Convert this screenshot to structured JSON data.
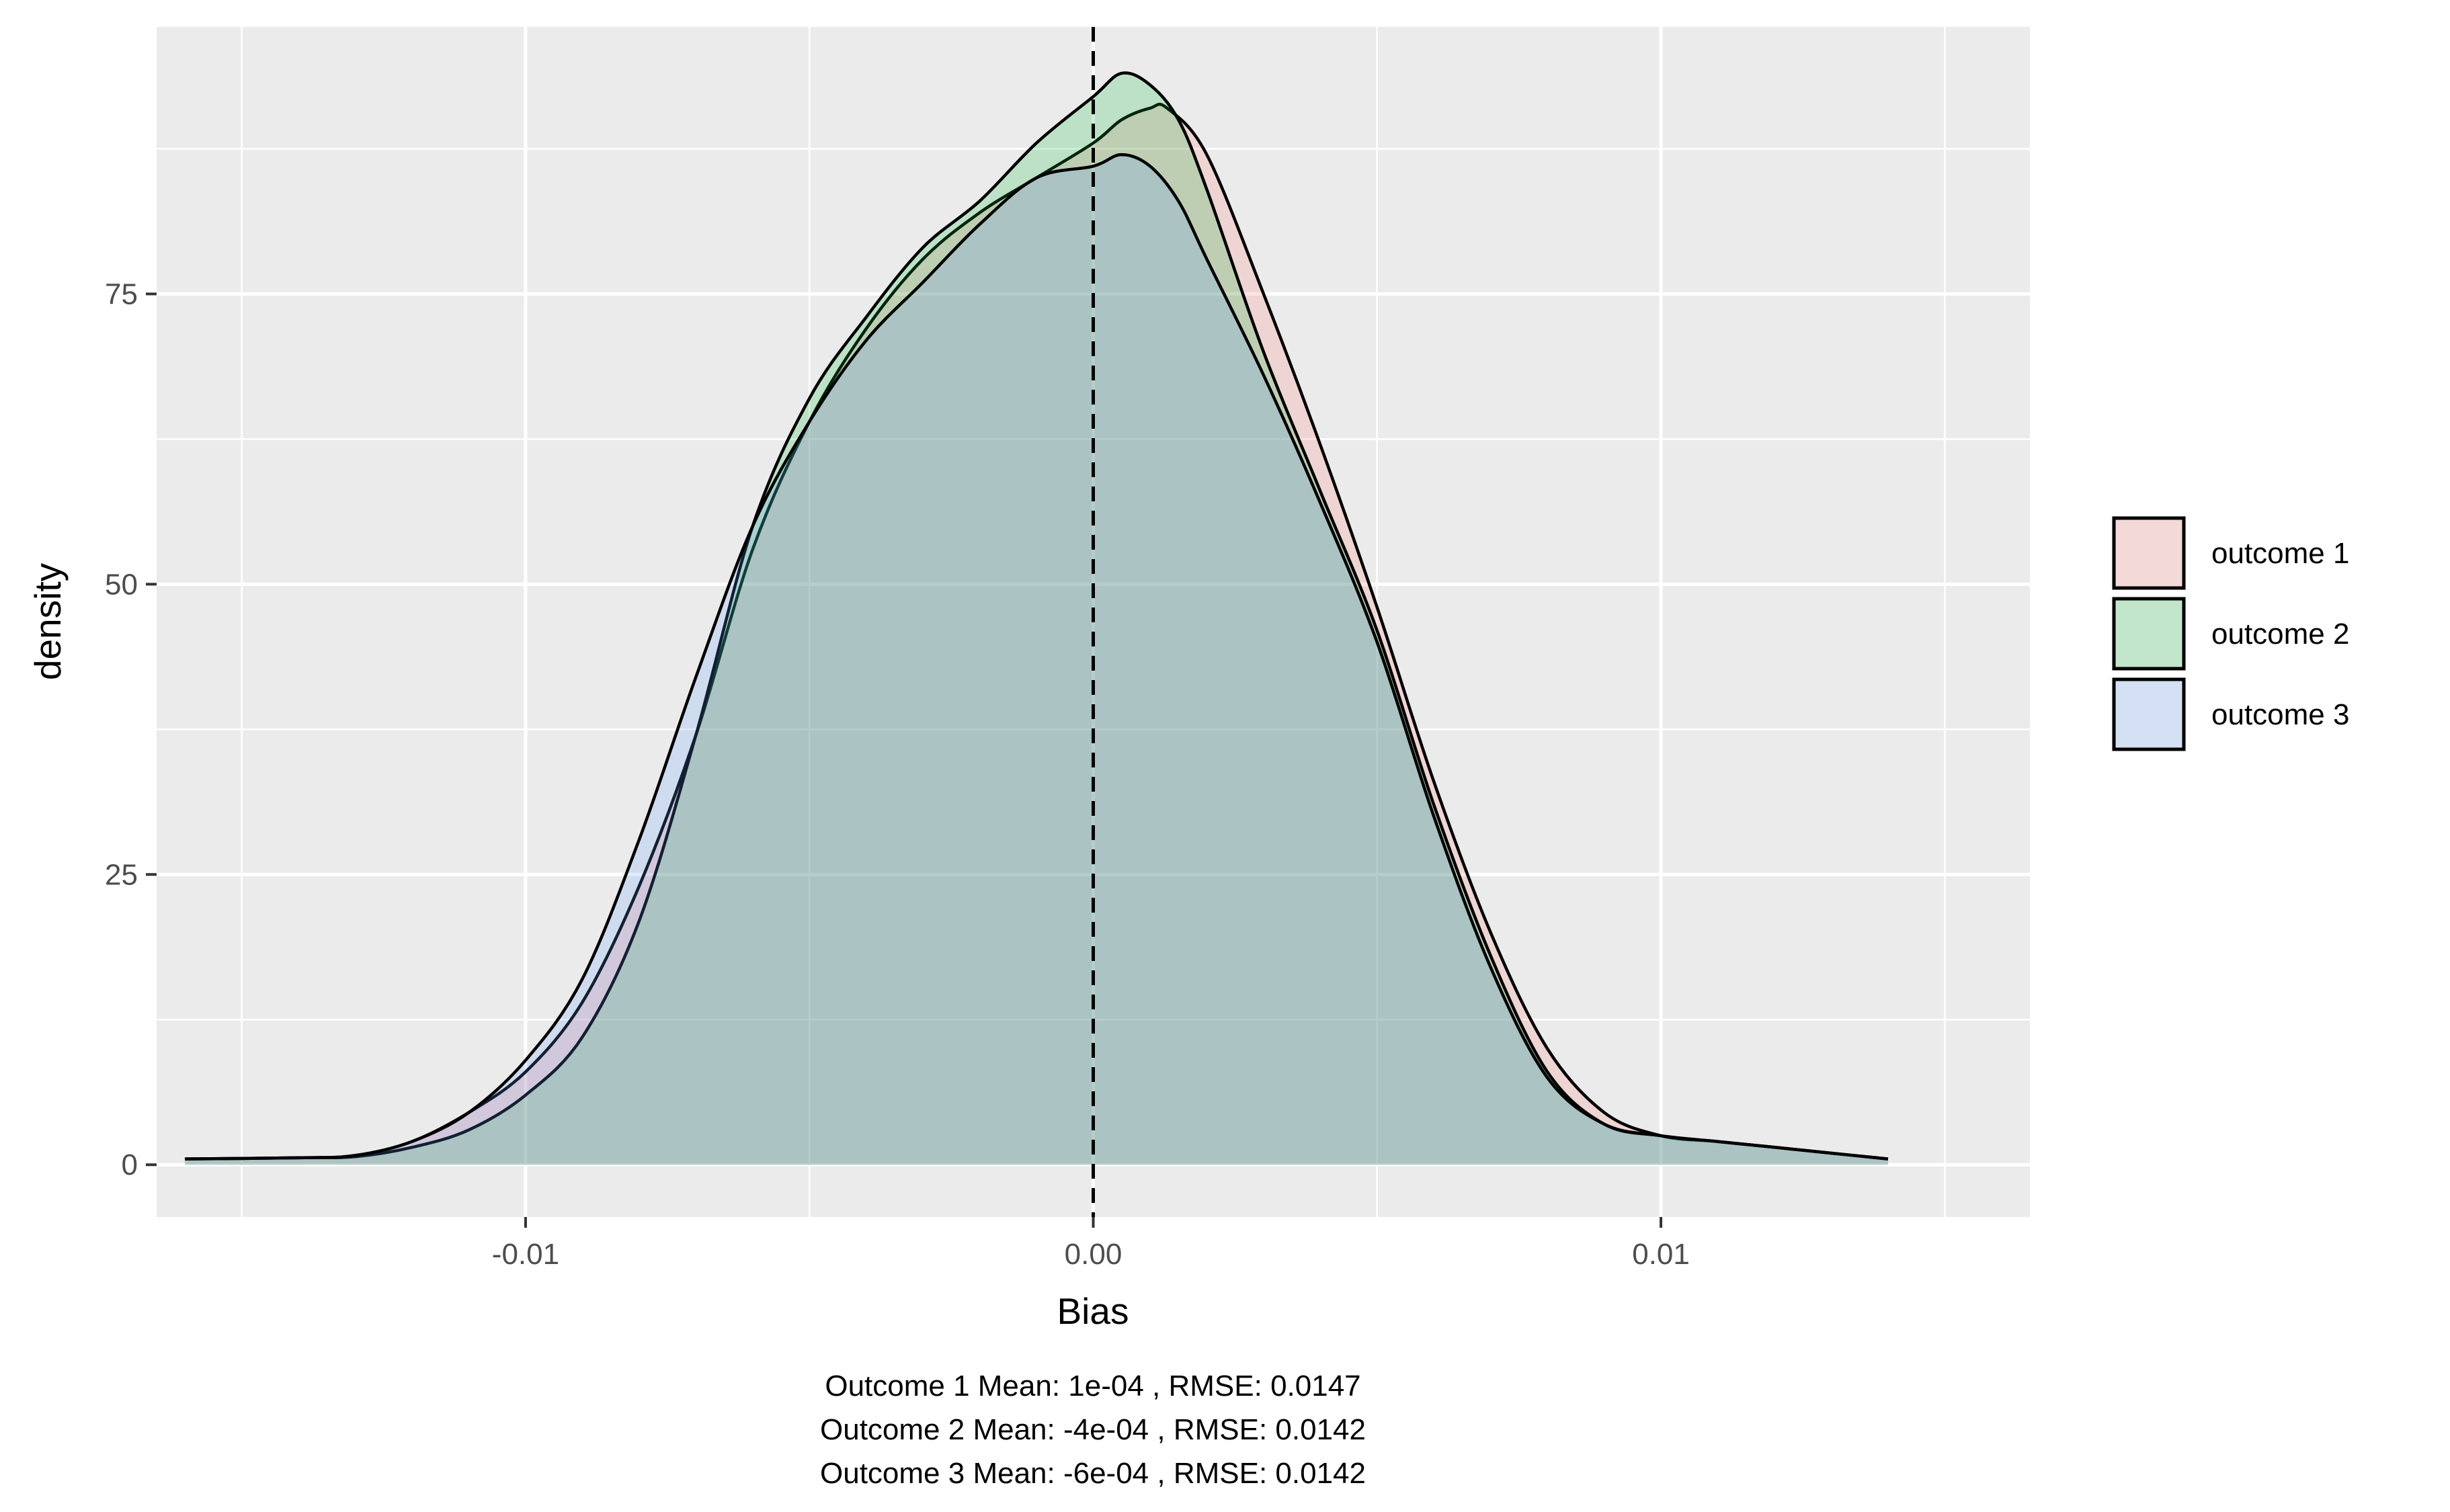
{
  "chart_data": {
    "type": "area",
    "title": "",
    "xlabel": "Bias",
    "ylabel": "density",
    "xlim": [
      -0.0165,
      0.0165
    ],
    "ylim": [
      -4.5,
      98
    ],
    "x_ticks": [
      -0.01,
      0.0,
      0.01
    ],
    "x_tick_labels": [
      "-0.01",
      "0.00",
      "0.01"
    ],
    "y_ticks": [
      0,
      25,
      50,
      75
    ],
    "y_tick_labels": [
      "0",
      "25",
      "50",
      "75"
    ],
    "grid": true,
    "reference_line": {
      "x": 0.0,
      "style": "dashed"
    },
    "legend_position": "right",
    "series": [
      {
        "name": "outcome 1",
        "color": "#F8766D",
        "x": [
          -0.016,
          -0.014,
          -0.013,
          -0.012,
          -0.011,
          -0.01,
          -0.009,
          -0.008,
          -0.007,
          -0.006,
          -0.005,
          -0.004,
          -0.003,
          -0.002,
          -0.001,
          0.0,
          0.0005,
          0.001,
          0.0013,
          0.002,
          0.003,
          0.004,
          0.005,
          0.006,
          0.007,
          0.008,
          0.009,
          0.01,
          0.011,
          0.012,
          0.013,
          0.014
        ],
        "values": [
          0.5,
          0.6,
          0.8,
          2.0,
          4.5,
          8.0,
          14.0,
          24.0,
          37.0,
          53.0,
          64.0,
          72.0,
          78.0,
          82.0,
          85.0,
          88.0,
          90.0,
          91.0,
          91.0,
          87.0,
          75.0,
          62.0,
          48.0,
          33.0,
          20.0,
          10.0,
          4.5,
          2.5,
          2.0,
          1.5,
          1.0,
          0.5
        ]
      },
      {
        "name": "outcome 2",
        "color": "#00BA38",
        "x": [
          -0.016,
          -0.014,
          -0.013,
          -0.012,
          -0.011,
          -0.01,
          -0.009,
          -0.008,
          -0.007,
          -0.006,
          -0.005,
          -0.004,
          -0.003,
          -0.002,
          -0.001,
          0.0,
          0.0005,
          0.001,
          0.0015,
          0.002,
          0.003,
          0.004,
          0.005,
          0.006,
          0.007,
          0.008,
          0.009,
          0.01,
          0.011,
          0.012,
          0.013,
          0.014
        ],
        "values": [
          0.5,
          0.6,
          0.7,
          1.5,
          3.0,
          6.0,
          11.0,
          21.0,
          37.0,
          55.0,
          66.0,
          73.0,
          79.0,
          83.0,
          88.0,
          92.0,
          94.0,
          93.0,
          90.0,
          84.0,
          70.0,
          58.0,
          46.0,
          31.0,
          18.0,
          8.0,
          3.5,
          2.5,
          2.0,
          1.5,
          1.0,
          0.5
        ]
      },
      {
        "name": "outcome 3",
        "color": "#619CFF",
        "x": [
          -0.016,
          -0.014,
          -0.013,
          -0.012,
          -0.011,
          -0.01,
          -0.009,
          -0.008,
          -0.007,
          -0.006,
          -0.005,
          -0.004,
          -0.003,
          -0.002,
          -0.001,
          0.0,
          0.0005,
          0.001,
          0.0015,
          0.002,
          0.003,
          0.004,
          0.005,
          0.006,
          0.007,
          0.008,
          0.009,
          0.01,
          0.011,
          0.012,
          0.013,
          0.014
        ],
        "values": [
          0.5,
          0.6,
          0.8,
          2.0,
          4.5,
          9.0,
          16.0,
          28.0,
          42.0,
          55.0,
          64.0,
          71.0,
          76.0,
          81.0,
          85.0,
          86.0,
          87.0,
          86.0,
          83.0,
          78.0,
          68.0,
          57.0,
          45.0,
          30.0,
          17.0,
          7.5,
          3.5,
          2.5,
          2.0,
          1.5,
          1.0,
          0.5
        ]
      }
    ],
    "caption": [
      "Outcome 1 Mean: 1e-04 , RMSE: 0.0147",
      "Outcome 2 Mean: -4e-04 , RMSE: 0.0142",
      " Outcome 3 Mean: -6e-04 , RMSE: 0.0142"
    ]
  }
}
